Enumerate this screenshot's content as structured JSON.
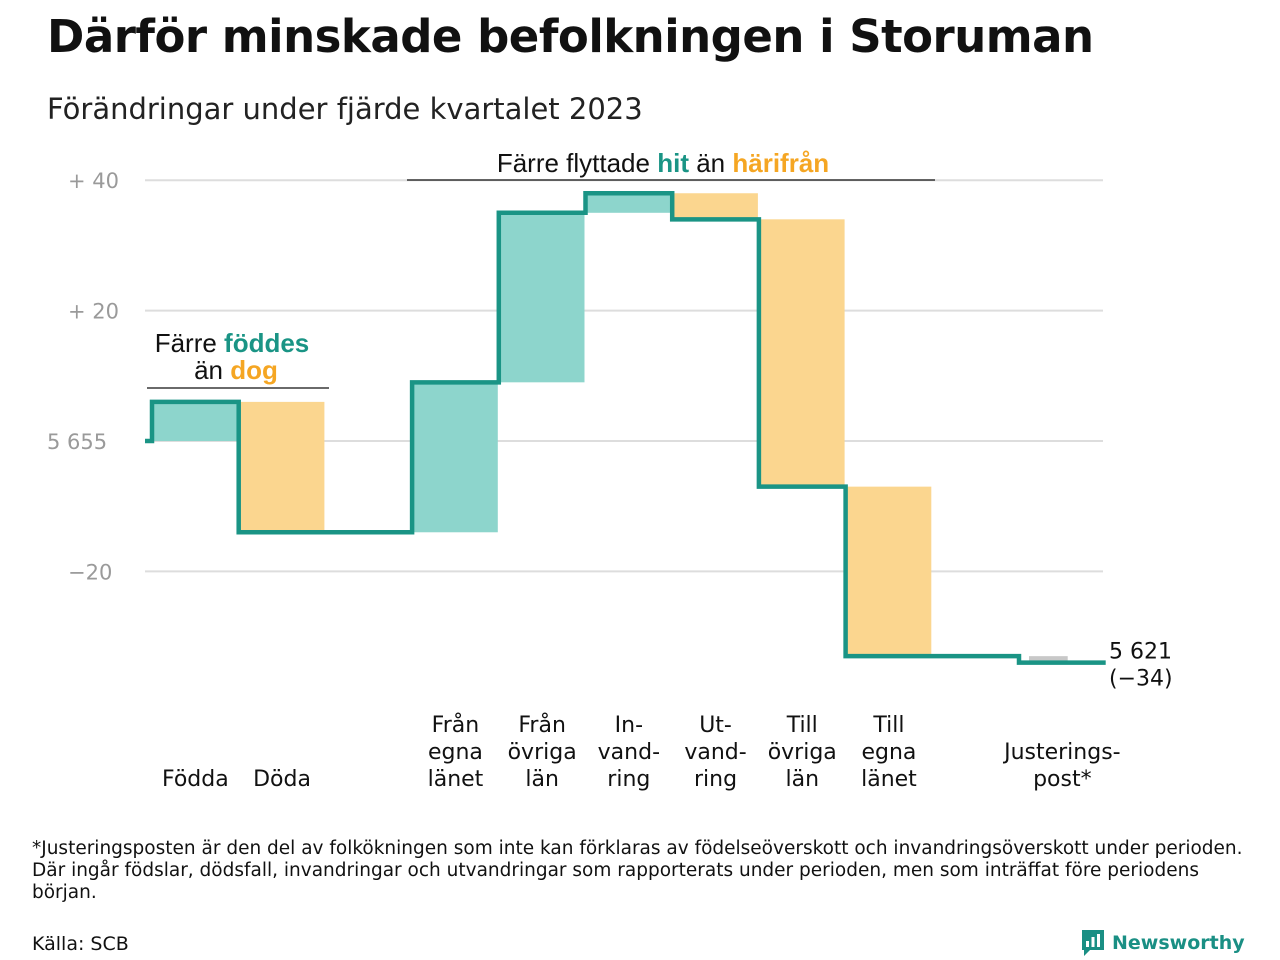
{
  "title": "Därför minskade befolkningen i Storuman",
  "subtitle": "Förändringar under fjärde kvartalet 2023",
  "footnote": "*Justeringsposten är den del av folkökningen som inte kan förklaras av födelseöverskott och invandringsöverskott under perioden. Där ingår födslar, dödsfall, invandringar och utvandringar som rapporterats under perioden, men som inträffat före periodens början.",
  "source": "Källa: SCB",
  "brand": "Newsworthy",
  "colors": {
    "increase": "#8dd5cc",
    "decrease": "#fbd68f",
    "adjustment": "#c8c8c8",
    "line": "#1a9485",
    "teal_text": "#1a9485",
    "orange_text": "#f5a623",
    "grid": "#dddddd"
  },
  "annotations": {
    "births": {
      "line1_pre": "Färre ",
      "line1_hl": "föddes",
      "line2_pre": "än ",
      "line2_hl": "dog"
    },
    "migration": {
      "pre": "Färre flyttade ",
      "hl1": "hit",
      "mid": " än ",
      "hl2": "härifrån"
    }
  },
  "chart_data": {
    "type": "waterfall",
    "title": "Därför minskade befolkningen i Storuman",
    "subtitle": "Förändringar under fjärde kvartalet 2023",
    "start_value": 5655,
    "start_label": "5 655",
    "end_value": 5621,
    "end_label_line1": "5 621",
    "end_label_line2": "(−34)",
    "y_ticks": [
      {
        "value": 40,
        "label": "+  40"
      },
      {
        "value": 20,
        "label": "+  20"
      },
      {
        "value": 0,
        "label": "5  655"
      },
      {
        "value": -20,
        "label": "−20"
      }
    ],
    "ylim": [
      -35,
      40
    ],
    "grid": true,
    "categories": [
      {
        "lines": [
          "Födda"
        ],
        "change": 6,
        "kind": "increase"
      },
      {
        "lines": [
          "Döda"
        ],
        "change": -20,
        "kind": "decrease"
      },
      {
        "lines": [],
        "change": 0,
        "kind": "gap"
      },
      {
        "lines": [
          "Från",
          "egna",
          "länet"
        ],
        "change": 23,
        "kind": "increase"
      },
      {
        "lines": [
          "Från",
          "övriga",
          "län"
        ],
        "change": 26,
        "kind": "increase"
      },
      {
        "lines": [
          "In-",
          "vand-",
          "ring"
        ],
        "change": 3,
        "kind": "increase"
      },
      {
        "lines": [
          "Ut-",
          "vand-",
          "ring"
        ],
        "change": -4,
        "kind": "decrease"
      },
      {
        "lines": [
          "Till",
          "övriga",
          "län"
        ],
        "change": -41,
        "kind": "decrease"
      },
      {
        "lines": [
          "Till",
          "egna",
          "länet"
        ],
        "change": -26,
        "kind": "decrease"
      },
      {
        "lines": [],
        "change": 0,
        "kind": "gap"
      },
      {
        "lines": [
          "Justerings-",
          "post*"
        ],
        "change": -1,
        "kind": "adjustment"
      }
    ]
  }
}
